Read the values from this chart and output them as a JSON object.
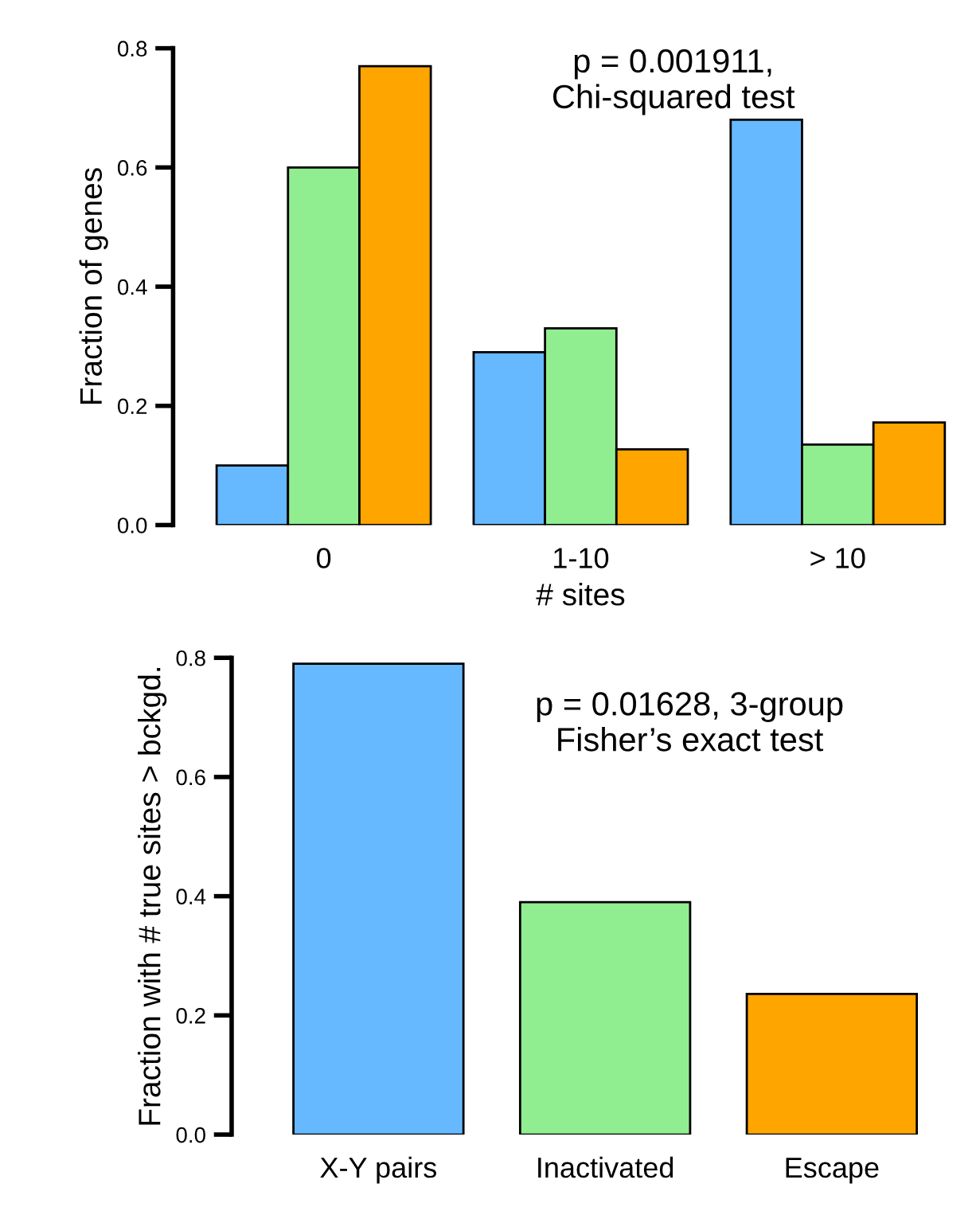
{
  "chart_data": [
    {
      "type": "bar",
      "categories": [
        "0",
        "1-10",
        "> 10"
      ],
      "xlabel": "# sites",
      "ylabel": "Fraction of genes",
      "ylim": [
        0,
        0.8
      ],
      "yticks": [
        {
          "value": 0,
          "label": "0.0"
        },
        0.2,
        0.4,
        0.6,
        0.8
      ],
      "annotations": [
        "p = 0.001911,\nChi-squared test"
      ],
      "series": [
        {
          "color": "#66b8ff",
          "values": [
            0.1,
            0.29,
            0.68
          ]
        },
        {
          "color": "#90ee90",
          "values": [
            0.6,
            0.33,
            0.135
          ]
        },
        {
          "color": "#ffa500",
          "values": [
            0.77,
            0.127,
            0.172
          ]
        }
      ]
    },
    {
      "type": "bar",
      "categories": [
        "X-Y pairs",
        "Inactivated",
        "Escape"
      ],
      "ylabel": "Fraction with # true sites > bckgd.",
      "ylim": [
        0,
        0.8
      ],
      "yticks": [
        {
          "value": 0,
          "label": "0.0"
        },
        0.2,
        0.4,
        0.6,
        0.8
      ],
      "annotations": [
        "p = 0.01628, 3-group\nFisher’s exact test"
      ],
      "values": [
        0.79,
        0.39,
        0.236
      ],
      "colors": [
        "#66b8ff",
        "#90ee90",
        "#ffa500"
      ]
    }
  ]
}
